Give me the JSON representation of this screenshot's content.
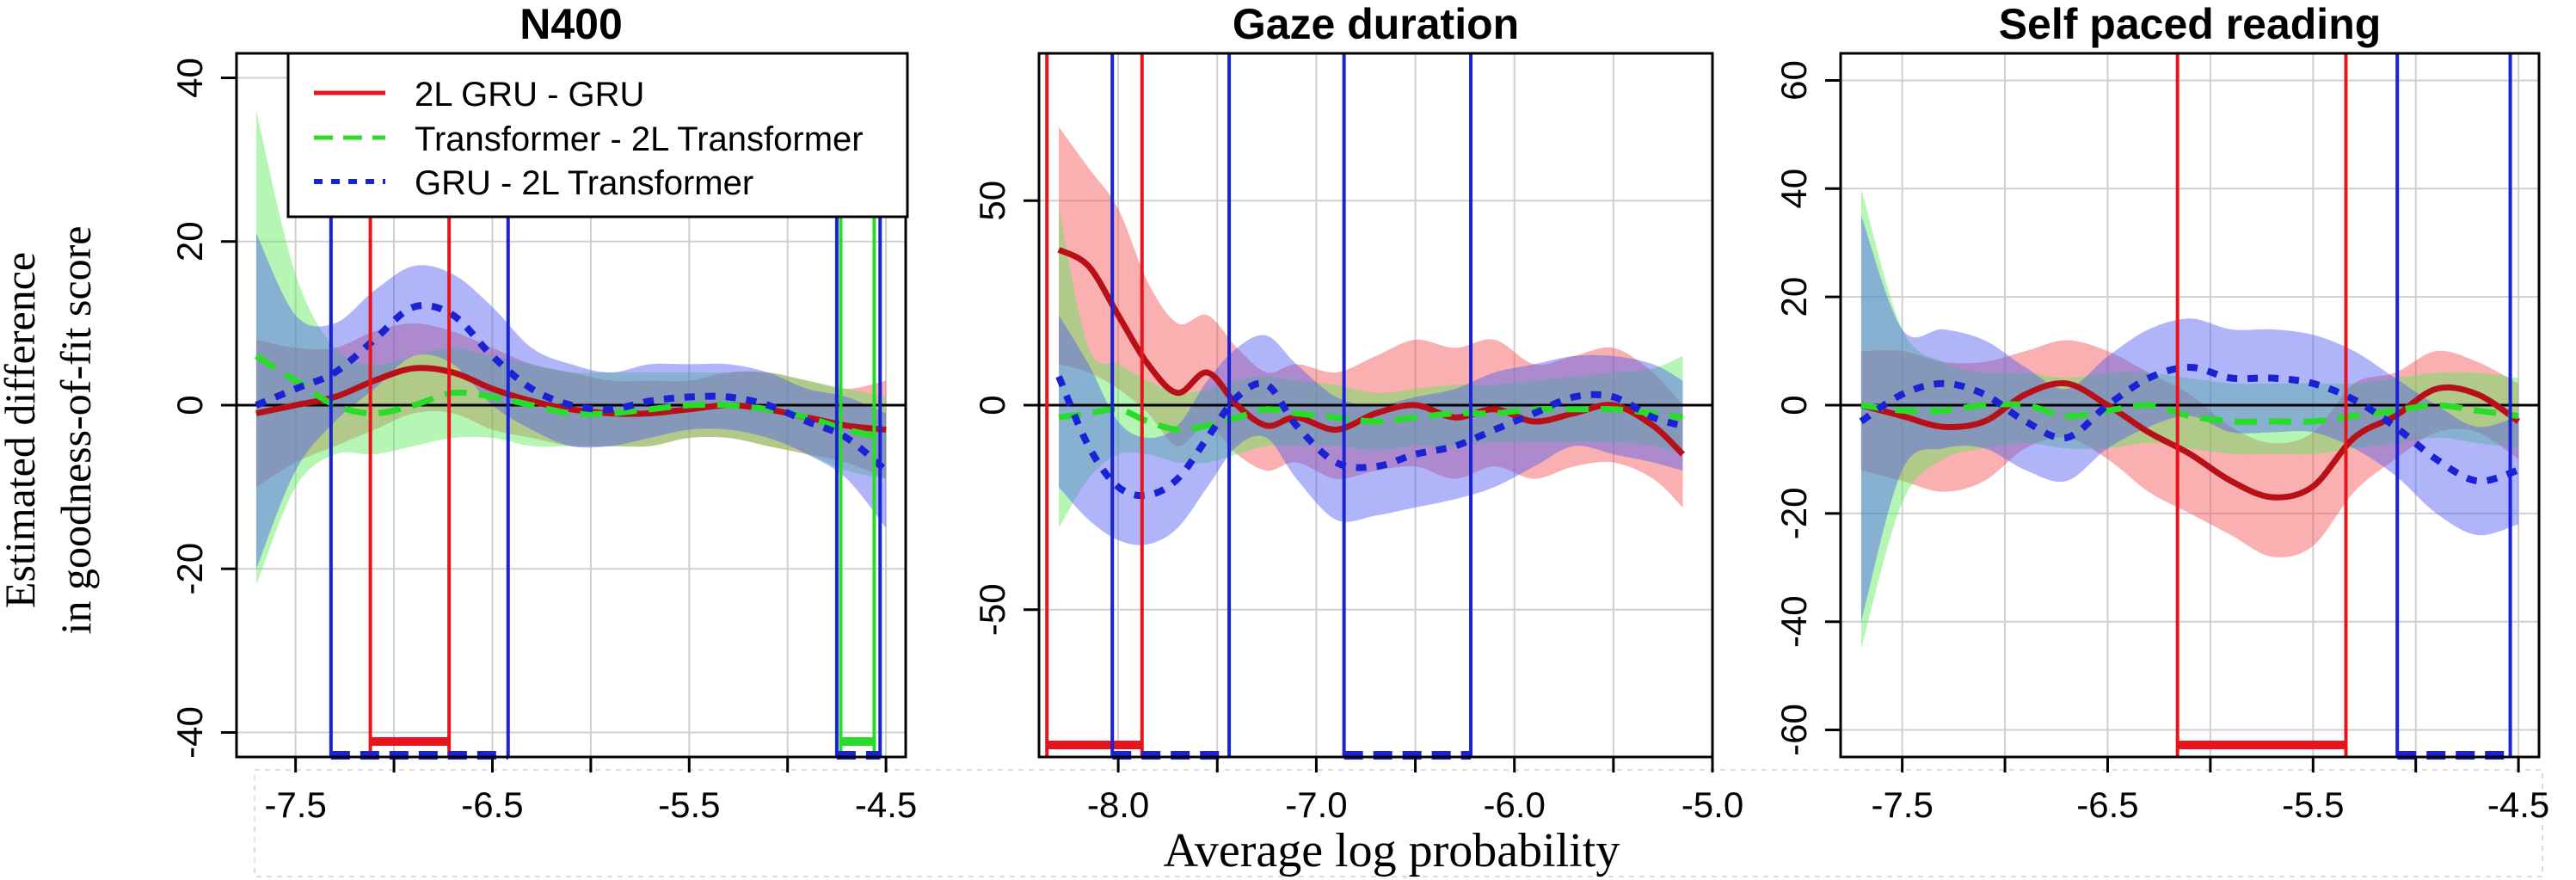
{
  "figure": {
    "ylabel_line1": "Estimated difference",
    "ylabel_line2": "in goodness-of-fit score",
    "xlabel": "Average log probability"
  },
  "legend": {
    "entries": [
      {
        "label": "2L GRU - GRU",
        "color": "#e8141c",
        "style": "solid"
      },
      {
        "label": "Transformer - 2L Transformer",
        "color": "#2adc2a",
        "style": "dashed"
      },
      {
        "label": "GRU - 2L Transformer",
        "color": "#1a22d6",
        "style": "dotted"
      }
    ]
  },
  "colors": {
    "red": "#e8141c",
    "red_fill": "rgba(244,80,80,0.45)",
    "green": "#2adc2a",
    "green_fill": "rgba(90,235,90,0.45)",
    "blue": "#1a22d6",
    "blue_fill": "rgba(80,90,245,0.45)",
    "grid": "#cfcfcf",
    "axis": "#000000"
  },
  "chart_data": [
    {
      "type": "line",
      "title": "N400",
      "xlim": [
        -7.8,
        -4.4
      ],
      "ylim": [
        -43,
        43
      ],
      "xticks": [
        -7.5,
        -7.0,
        -6.5,
        -6.0,
        -5.5,
        -5.0,
        -4.5
      ],
      "xtick_labels": [
        "-7.5",
        "",
        "-6.5",
        "",
        "-5.5",
        "",
        "-4.5"
      ],
      "yticks": [
        -40,
        -20,
        0,
        20,
        40
      ],
      "ytick_labels": [
        "-40",
        "-20",
        "0",
        "20",
        "40"
      ],
      "x": [
        -7.7,
        -7.5,
        -7.3,
        -7.1,
        -6.9,
        -6.7,
        -6.5,
        -6.3,
        -6.1,
        -5.9,
        -5.7,
        -5.5,
        -5.3,
        -5.1,
        -4.9,
        -4.7,
        -4.5
      ],
      "series": [
        {
          "name": "2L GRU - GRU",
          "color_key": "red",
          "values": [
            -1,
            0,
            1,
            3,
            4.5,
            4,
            2,
            0.5,
            -0.5,
            -1,
            -1,
            -0.5,
            0,
            -0.5,
            -1.5,
            -2.5,
            -3
          ],
          "lower": [
            -10,
            -7,
            -5,
            -3,
            -1,
            -1,
            -3,
            -4,
            -5,
            -5,
            -5,
            -4,
            -4,
            -5,
            -6,
            -7,
            -9
          ],
          "upper": [
            8,
            7,
            7,
            9,
            10,
            9,
            7,
            5,
            4,
            3,
            3,
            3,
            4,
            4,
            3,
            2,
            3
          ]
        },
        {
          "name": "Transformer - 2L Transformer",
          "color_key": "green",
          "values": [
            6,
            3,
            0,
            -1,
            0,
            1.5,
            1,
            0,
            -1,
            -1,
            -0.5,
            0,
            0,
            -0.5,
            -1.5,
            -3,
            -4
          ],
          "lower": [
            -22,
            -10,
            -6,
            -6,
            -5,
            -4,
            -4,
            -5,
            -5,
            -5,
            -5,
            -4,
            -4,
            -5,
            -6,
            -8,
            -9
          ],
          "upper": [
            36,
            16,
            7,
            5,
            6,
            7,
            6,
            5,
            4,
            4,
            4,
            4,
            4,
            4,
            3,
            2,
            1
          ]
        },
        {
          "name": "GRU - 2L Transformer",
          "color_key": "blue",
          "values": [
            0,
            2,
            4,
            8,
            12,
            11,
            6,
            2,
            0,
            -0.5,
            0.5,
            1,
            1,
            0,
            -2,
            -4,
            -8
          ],
          "lower": [
            -20,
            -8,
            -2,
            2,
            6,
            5,
            0,
            -3,
            -5,
            -5,
            -4,
            -3,
            -3,
            -4,
            -6,
            -9,
            -15
          ],
          "upper": [
            21,
            11,
            10,
            14,
            17,
            16,
            12,
            7,
            5,
            4,
            5,
            5,
            5,
            4,
            2,
            1,
            -1
          ]
        }
      ],
      "regions": [
        {
          "color_key": "red",
          "x0": -7.12,
          "x1": -6.72,
          "style": "box"
        },
        {
          "color_key": "blue",
          "x0": -7.32,
          "x1": -6.42,
          "style": "dashed"
        },
        {
          "color_key": "green",
          "x0": -4.73,
          "x1": -4.56,
          "style": "box"
        },
        {
          "color_key": "blue",
          "x0": -4.75,
          "x1": -4.53,
          "style": "dashed"
        }
      ]
    },
    {
      "type": "line",
      "title": "Gaze duration",
      "xlim": [
        -8.4,
        -5.0
      ],
      "ylim": [
        -86,
        86
      ],
      "xticks": [
        -8.0,
        -7.5,
        -7.0,
        -6.5,
        -6.0,
        -5.5,
        -5.0
      ],
      "xtick_labels": [
        "-8.0",
        "",
        "-7.0",
        "",
        "-6.0",
        "",
        "-5.0"
      ],
      "yticks": [
        -50,
        0,
        50
      ],
      "ytick_labels": [
        "-50",
        "0",
        "50"
      ],
      "x": [
        -8.3,
        -8.15,
        -8.0,
        -7.85,
        -7.7,
        -7.55,
        -7.4,
        -7.25,
        -7.1,
        -6.9,
        -6.7,
        -6.5,
        -6.3,
        -6.1,
        -5.9,
        -5.7,
        -5.5,
        -5.3,
        -5.15
      ],
      "series": [
        {
          "name": "2L GRU - GRU",
          "color_key": "red",
          "values": [
            38,
            34,
            22,
            10,
            3,
            8,
            0,
            -5,
            -3,
            -6,
            -2,
            0,
            -3,
            -1,
            -4,
            -2,
            0,
            -5,
            -12
          ],
          "lower": [
            10,
            8,
            4,
            -2,
            -10,
            -5,
            -12,
            -16,
            -14,
            -18,
            -16,
            -15,
            -18,
            -15,
            -18,
            -15,
            -14,
            -18,
            -25
          ],
          "upper": [
            68,
            58,
            48,
            30,
            20,
            22,
            14,
            8,
            10,
            8,
            12,
            16,
            14,
            16,
            10,
            12,
            14,
            8,
            0
          ]
        },
        {
          "name": "Transformer - 2L Transformer",
          "color_key": "green",
          "values": [
            -3,
            -2,
            -1,
            -4,
            -6,
            -5,
            -3,
            -1,
            -2,
            -3,
            -4,
            -3,
            -2,
            -2,
            -1,
            -1,
            -1,
            -2,
            -3
          ],
          "lower": [
            -30,
            -18,
            -12,
            -12,
            -14,
            -14,
            -12,
            -10,
            -10,
            -10,
            -11,
            -10,
            -10,
            -9,
            -9,
            -9,
            -9,
            -10,
            -12
          ],
          "upper": [
            48,
            14,
            10,
            6,
            3,
            4,
            6,
            7,
            6,
            5,
            3,
            4,
            5,
            5,
            6,
            7,
            8,
            9,
            12
          ]
        },
        {
          "name": "GRU - 2L Transformer",
          "color_key": "blue",
          "values": [
            7,
            -10,
            -20,
            -22,
            -18,
            -8,
            2,
            5,
            -5,
            -14,
            -15,
            -12,
            -10,
            -6,
            -2,
            2,
            2,
            -3,
            -5
          ],
          "lower": [
            -20,
            -28,
            -33,
            -34,
            -30,
            -20,
            -10,
            -8,
            -18,
            -28,
            -27,
            -25,
            -23,
            -20,
            -15,
            -10,
            -12,
            -14,
            -16
          ],
          "upper": [
            22,
            10,
            -4,
            -8,
            -5,
            6,
            14,
            17,
            10,
            2,
            0,
            2,
            4,
            8,
            10,
            12,
            12,
            10,
            6
          ]
        }
      ],
      "regions": [
        {
          "color_key": "red",
          "x0": -8.36,
          "x1": -7.88,
          "style": "box"
        },
        {
          "color_key": "blue",
          "x0": -8.03,
          "x1": -7.44,
          "style": "dashed"
        },
        {
          "color_key": "blue",
          "x0": -6.86,
          "x1": -6.22,
          "style": "dashed"
        }
      ]
    },
    {
      "type": "line",
      "title": "Self paced reading",
      "xlim": [
        -7.8,
        -4.4
      ],
      "ylim": [
        -65,
        65
      ],
      "xticks": [
        -7.5,
        -7.0,
        -6.5,
        -6.0,
        -5.5,
        -5.0,
        -4.5
      ],
      "xtick_labels": [
        "-7.5",
        "",
        "-6.5",
        "",
        "-5.5",
        "",
        "-4.5"
      ],
      "yticks": [
        -60,
        -40,
        -20,
        0,
        20,
        40,
        60
      ],
      "ytick_labels": [
        "-60",
        "-40",
        "-20",
        "0",
        "20",
        "40",
        "60"
      ],
      "x": [
        -7.7,
        -7.5,
        -7.3,
        -7.1,
        -6.9,
        -6.7,
        -6.5,
        -6.3,
        -6.1,
        -5.9,
        -5.7,
        -5.5,
        -5.3,
        -5.1,
        -4.9,
        -4.7,
        -4.5
      ],
      "series": [
        {
          "name": "2L GRU - GRU",
          "color_key": "red",
          "values": [
            0,
            -2,
            -4,
            -3,
            2,
            4,
            0,
            -5,
            -9,
            -14,
            -17,
            -15,
            -6,
            -2,
            3,
            2,
            -3
          ],
          "lower": [
            -12,
            -14,
            -16,
            -14,
            -8,
            -6,
            -10,
            -16,
            -20,
            -24,
            -28,
            -26,
            -16,
            -10,
            -5,
            -5,
            -10
          ],
          "upper": [
            10,
            10,
            8,
            8,
            10,
            12,
            10,
            6,
            2,
            -4,
            -7,
            -5,
            4,
            6,
            10,
            8,
            4
          ]
        },
        {
          "name": "Transformer - 2L Transformer",
          "color_key": "green",
          "values": [
            0,
            -1,
            -1,
            0,
            0,
            -2,
            -1,
            0,
            -2,
            -3,
            -3,
            -3,
            -2,
            -1,
            0,
            -1,
            -2
          ],
          "lower": [
            -45,
            -18,
            -10,
            -8,
            -7,
            -8,
            -8,
            -7,
            -8,
            -9,
            -9,
            -9,
            -8,
            -7,
            -6,
            -7,
            -8
          ],
          "upper": [
            40,
            14,
            8,
            6,
            6,
            5,
            6,
            6,
            5,
            4,
            4,
            4,
            4,
            5,
            6,
            6,
            5
          ]
        },
        {
          "name": "GRU - 2L Transformer",
          "color_key": "blue",
          "values": [
            -3,
            2,
            4,
            2,
            -3,
            -6,
            0,
            5,
            7,
            5,
            5,
            4,
            1,
            -4,
            -10,
            -14,
            -12
          ],
          "lower": [
            -40,
            -12,
            -8,
            -8,
            -12,
            -14,
            -8,
            -4,
            -2,
            -5,
            -5,
            -5,
            -8,
            -13,
            -20,
            -24,
            -22
          ],
          "upper": [
            35,
            14,
            14,
            12,
            7,
            3,
            9,
            14,
            16,
            14,
            14,
            13,
            10,
            5,
            0,
            -4,
            -2
          ]
        }
      ],
      "regions": [
        {
          "color_key": "red",
          "x0": -6.16,
          "x1": -5.34,
          "style": "box"
        },
        {
          "color_key": "blue",
          "x0": -5.09,
          "x1": -4.54,
          "style": "dashed"
        }
      ]
    }
  ]
}
